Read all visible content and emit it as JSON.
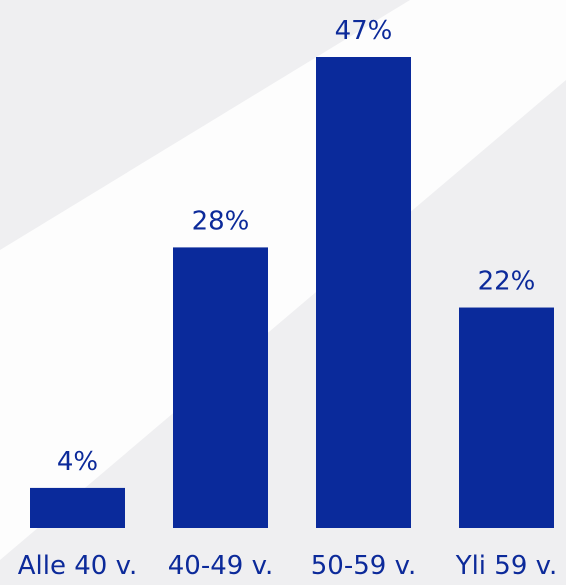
{
  "chart_data": {
    "type": "bar",
    "categories": [
      "Alle 40 v.",
      "40-49 v.",
      "50-59 v.",
      "Yli 59 v."
    ],
    "values": [
      4,
      28,
      47,
      22
    ],
    "value_labels": [
      "4%",
      "28%",
      "47%",
      "22%"
    ],
    "color": "#0a2a9b"
  }
}
